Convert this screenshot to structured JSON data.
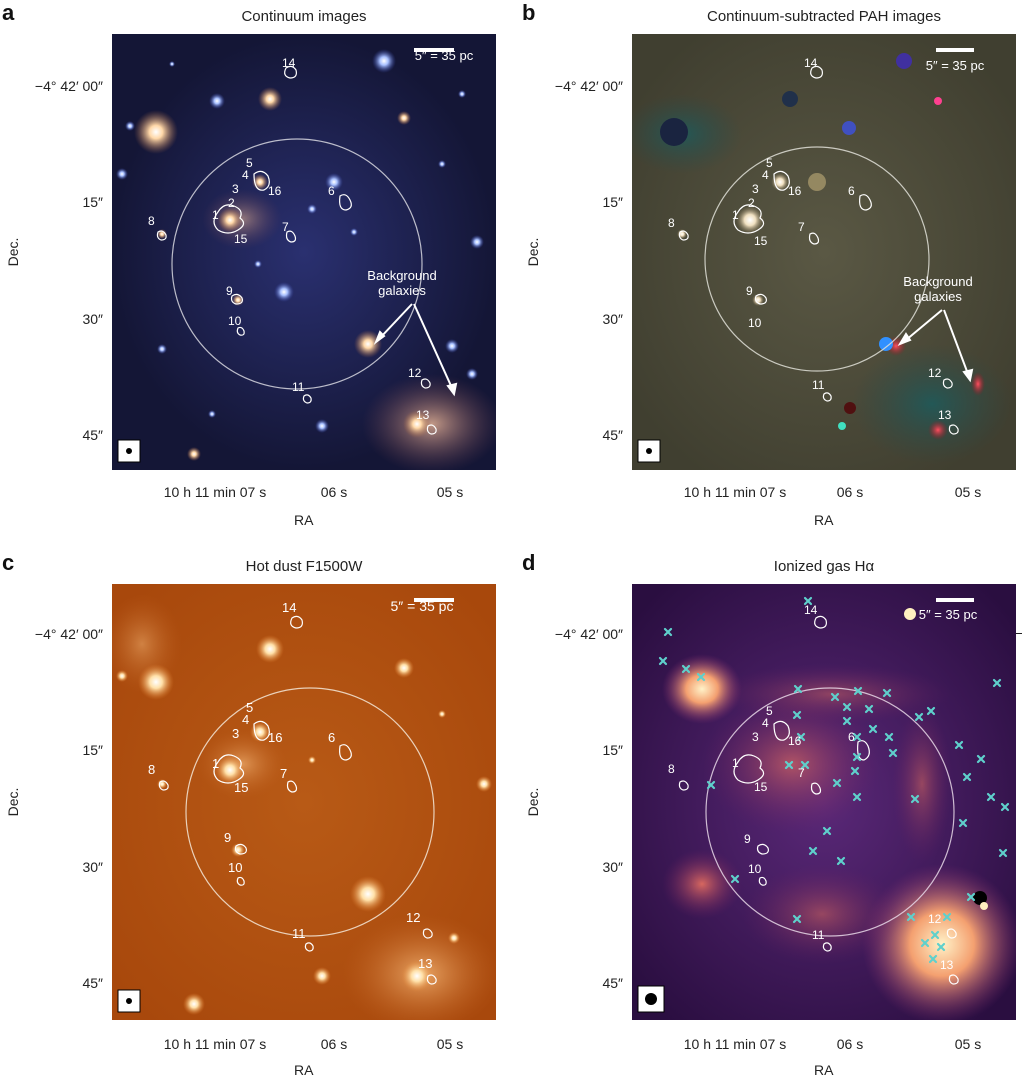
{
  "panels": [
    {
      "label": "a",
      "title": "Continuum images"
    },
    {
      "label": "b",
      "title": "Continuum-subtracted PAH images"
    },
    {
      "label": "c",
      "title": "Hot dust  F1500W"
    },
    {
      "label": "d",
      "title": "Ionized gas Hα"
    }
  ],
  "axes": {
    "x_label": "RA",
    "y_label": "Dec.",
    "x_ticks": [
      "10 h 11 min 07 s",
      "06 s",
      "05 s"
    ],
    "y_ticks": [
      "−4° 42′ 00″",
      "15″",
      "30″",
      "45″"
    ]
  },
  "scale_bar": "5″ = 35 pc",
  "annotation": "Background\ngalaxies",
  "region_labels": [
    "1",
    "2",
    "3",
    "4",
    "5",
    "6",
    "7",
    "8",
    "9",
    "10",
    "11",
    "12",
    "13",
    "14",
    "15",
    "16"
  ],
  "colors": {
    "panel_a_bg": "#1a1c45",
    "panel_b_bg": "#4d4b3a",
    "panel_c_bg": "#b0520f",
    "panel_d_bg": "#3a1550",
    "halpha_marker": "#5fd0cc",
    "contour": "#ffffff"
  }
}
